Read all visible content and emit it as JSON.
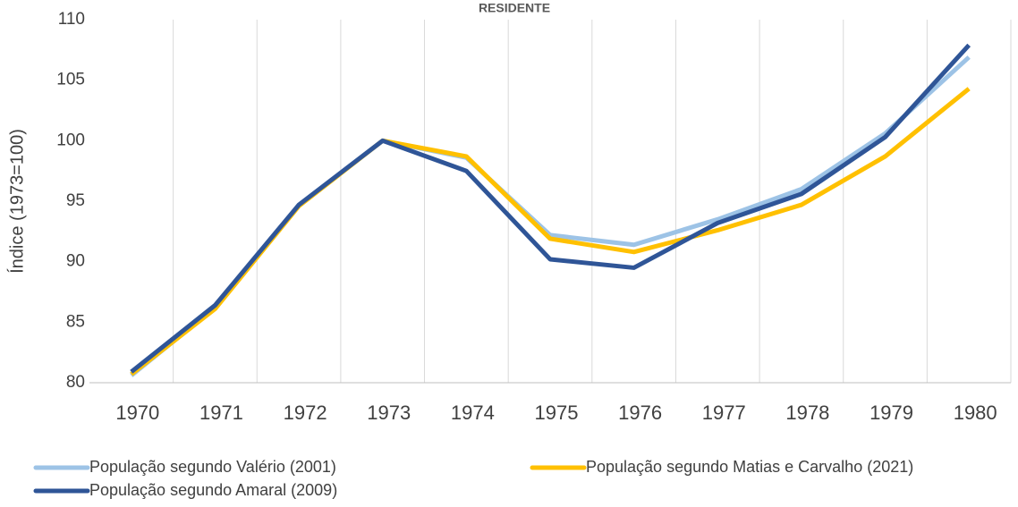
{
  "chart_data": {
    "type": "line",
    "title": "RESIDENTE",
    "y_label": "Índice (1973=100)",
    "categories": [
      "1970",
      "1971",
      "1972",
      "1973",
      "1974",
      "1975",
      "1976",
      "1977",
      "1978",
      "1979",
      "1980"
    ],
    "series": [
      {
        "name": "População segundo Valério (2001)",
        "color": "#9dc3e6",
        "values": [
          80.6,
          86.2,
          94.7,
          100,
          98.6,
          92.2,
          91.4,
          93.5,
          96.0,
          100.6,
          106.9
        ]
      },
      {
        "name": "População segundo Matias e Carvalho (2021)",
        "color": "#ffc000",
        "values": [
          80.7,
          86.1,
          94.6,
          100,
          98.7,
          91.9,
          90.8,
          92.6,
          94.7,
          98.7,
          104.3
        ]
      },
      {
        "name": "População segundo Amaral (2009)",
        "color": "#2f5597",
        "values": [
          80.9,
          86.4,
          94.7,
          100,
          97.5,
          90.2,
          89.5,
          93.2,
          95.6,
          100.3,
          107.9
        ]
      }
    ],
    "ylim": [
      80,
      110
    ],
    "yticks": [
      80,
      85,
      90,
      95,
      100,
      105,
      110
    ],
    "grid": "x"
  }
}
